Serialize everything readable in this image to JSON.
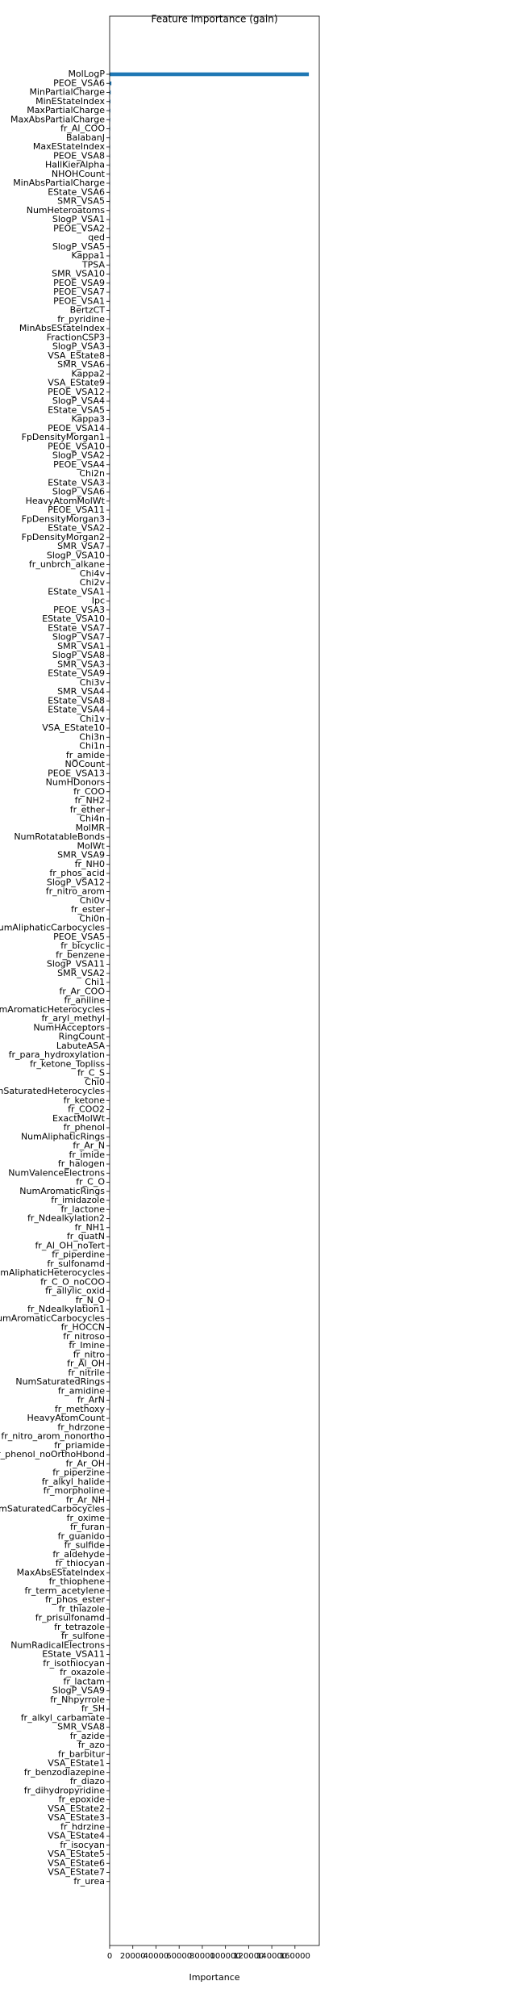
{
  "chart_data": {
    "type": "barh",
    "title": "Feature Importance (gain)",
    "xlabel": "Importance",
    "color": "#1f77b4",
    "xlim": [
      0,
      181000
    ],
    "xticks": [
      0,
      20000,
      40000,
      60000,
      80000,
      100000,
      120000,
      140000,
      160000
    ],
    "categories": [
      "MolLogP",
      "PEOE_VSA6",
      "MinPartialCharge",
      "MinEStateIndex",
      "MaxPartialCharge",
      "MaxAbsPartialCharge",
      "fr_Al_COO",
      "BalabanJ",
      "MaxEStateIndex",
      "PEOE_VSA8",
      "HallKierAlpha",
      "NHOHCount",
      "MinAbsPartialCharge",
      "EState_VSA6",
      "SMR_VSA5",
      "NumHeteroatoms",
      "SlogP_VSA1",
      "PEOE_VSA2",
      "qed",
      "SlogP_VSA5",
      "Kappa1",
      "TPSA",
      "SMR_VSA10",
      "PEOE_VSA9",
      "PEOE_VSA7",
      "PEOE_VSA1",
      "BertzCT",
      "fr_pyridine",
      "MinAbsEStateIndex",
      "FractionCSP3",
      "SlogP_VSA3",
      "VSA_EState8",
      "SMR_VSA6",
      "Kappa2",
      "VSA_EState9",
      "PEOE_VSA12",
      "SlogP_VSA4",
      "EState_VSA5",
      "Kappa3",
      "PEOE_VSA14",
      "FpDensityMorgan1",
      "PEOE_VSA10",
      "SlogP_VSA2",
      "PEOE_VSA4",
      "Chi2n",
      "EState_VSA3",
      "SlogP_VSA6",
      "HeavyAtomMolWt",
      "PEOE_VSA11",
      "FpDensityMorgan3",
      "EState_VSA2",
      "FpDensityMorgan2",
      "SMR_VSA7",
      "SlogP_VSA10",
      "fr_unbrch_alkane",
      "Chi4v",
      "Chi2v",
      "EState_VSA1",
      "Ipc",
      "PEOE_VSA3",
      "EState_VSA10",
      "EState_VSA7",
      "SlogP_VSA7",
      "SMR_VSA1",
      "SlogP_VSA8",
      "SMR_VSA3",
      "EState_VSA9",
      "Chi3v",
      "SMR_VSA4",
      "EState_VSA8",
      "EState_VSA4",
      "Chi1v",
      "VSA_EState10",
      "Chi3n",
      "Chi1n",
      "fr_amide",
      "NOCount",
      "PEOE_VSA13",
      "NumHDonors",
      "fr_COO",
      "fr_NH2",
      "fr_ether",
      "Chi4n",
      "MolMR",
      "NumRotatableBonds",
      "MolWt",
      "SMR_VSA9",
      "fr_NH0",
      "fr_phos_acid",
      "SlogP_VSA12",
      "fr_nitro_arom",
      "Chi0v",
      "fr_ester",
      "Chi0n",
      "NumAliphaticCarbocycles",
      "PEOE_VSA5",
      "fr_bicyclic",
      "fr_benzene",
      "SlogP_VSA11",
      "SMR_VSA2",
      "Chi1",
      "fr_Ar_COO",
      "fr_aniline",
      "NumAromaticHeterocycles",
      "fr_aryl_methyl",
      "NumHAcceptors",
      "RingCount",
      "LabuteASA",
      "fr_para_hydroxylation",
      "fr_ketone_Topliss",
      "fr_C_S",
      "Chi0",
      "NumSaturatedHeterocycles",
      "fr_ketone",
      "fr_COO2",
      "ExactMolWt",
      "fr_phenol",
      "NumAliphaticRings",
      "fr_Ar_N",
      "fr_imide",
      "fr_halogen",
      "NumValenceElectrons",
      "fr_C_O",
      "NumAromaticRings",
      "fr_imidazole",
      "fr_lactone",
      "fr_Ndealkylation2",
      "fr_NH1",
      "fr_quatN",
      "fr_Al_OH_noTert",
      "fr_piperdine",
      "fr_sulfonamd",
      "NumAliphaticHeterocycles",
      "fr_C_O_noCOO",
      "fr_allylic_oxid",
      "fr_N_O",
      "fr_Ndealkylation1",
      "NumAromaticCarbocycles",
      "fr_HOCCN",
      "fr_nitroso",
      "fr_Imine",
      "fr_nitro",
      "fr_Al_OH",
      "fr_nitrile",
      "NumSaturatedRings",
      "fr_amidine",
      "fr_ArN",
      "fr_methoxy",
      "HeavyAtomCount",
      "fr_hdrzone",
      "fr_nitro_arom_nonortho",
      "fr_priamide",
      "fr_phenol_noOrthoHbond",
      "fr_Ar_OH",
      "fr_piperzine",
      "fr_alkyl_halide",
      "fr_morpholine",
      "fr_Ar_NH",
      "NumSaturatedCarbocycles",
      "fr_oxime",
      "fr_furan",
      "fr_guanido",
      "fr_sulfide",
      "fr_aldehyde",
      "fr_thiocyan",
      "MaxAbsEStateIndex",
      "fr_thiophene",
      "fr_term_acetylene",
      "fr_phos_ester",
      "fr_thiazole",
      "fr_prisulfonamd",
      "fr_tetrazole",
      "fr_sulfone",
      "NumRadicalElectrons",
      "EState_VSA11",
      "fr_isothiocyan",
      "fr_oxazole",
      "fr_lactam",
      "SlogP_VSA9",
      "fr_Nhpyrrole",
      "fr_SH",
      "fr_alkyl_carbamate",
      "SMR_VSA8",
      "fr_azide",
      "fr_azo",
      "fr_barbitur",
      "VSA_EState1",
      "fr_benzodiazepine",
      "fr_diazo",
      "fr_dihydropyridine",
      "fr_epoxide",
      "VSA_EState2",
      "VSA_EState3",
      "fr_hdrzine",
      "VSA_EState4",
      "fr_isocyan",
      "VSA_EState5",
      "VSA_EState6",
      "VSA_EState7",
      "fr_urea"
    ],
    "values": [
      172000,
      1500,
      900,
      700,
      600,
      500,
      450,
      400,
      380,
      360,
      340,
      320,
      300,
      290,
      280,
      270,
      260,
      250,
      240,
      230,
      220,
      210,
      200,
      195,
      190,
      185,
      180,
      175,
      170,
      165,
      160,
      155,
      150,
      145,
      140,
      135,
      130,
      125,
      120,
      115,
      110,
      105,
      100,
      98,
      96,
      94,
      92,
      90,
      88,
      86,
      84,
      82,
      80,
      78,
      76,
      74,
      72,
      70,
      68,
      66,
      64,
      62,
      60,
      58,
      56,
      54,
      52,
      50,
      48,
      46,
      44,
      42,
      40,
      38,
      36,
      34,
      32,
      30,
      29,
      28,
      27,
      26,
      25,
      24,
      23,
      22,
      21,
      20,
      19,
      18,
      17,
      16,
      15,
      14,
      13,
      12,
      11,
      10,
      9,
      8,
      7,
      6,
      5,
      4,
      3,
      2,
      1,
      1,
      1,
      1,
      0,
      0,
      0,
      0,
      0,
      0,
      0,
      0,
      0,
      0,
      0,
      0,
      0,
      0,
      0,
      0,
      0,
      0,
      0,
      0,
      0,
      0,
      0,
      0,
      0,
      0,
      0,
      0,
      0,
      0,
      0,
      0,
      0,
      0,
      0,
      0,
      0,
      0,
      0,
      0,
      0,
      0,
      0,
      0,
      0,
      0,
      0,
      0,
      0,
      0,
      0,
      0,
      0,
      0,
      0,
      0,
      0,
      0,
      0,
      0,
      0,
      0,
      0,
      0,
      0,
      0,
      0,
      0,
      0,
      0,
      0,
      0,
      0,
      0,
      0,
      0,
      0,
      0,
      0,
      0,
      0,
      0,
      0,
      0,
      0,
      0,
      0,
      0,
      0,
      0
    ]
  }
}
